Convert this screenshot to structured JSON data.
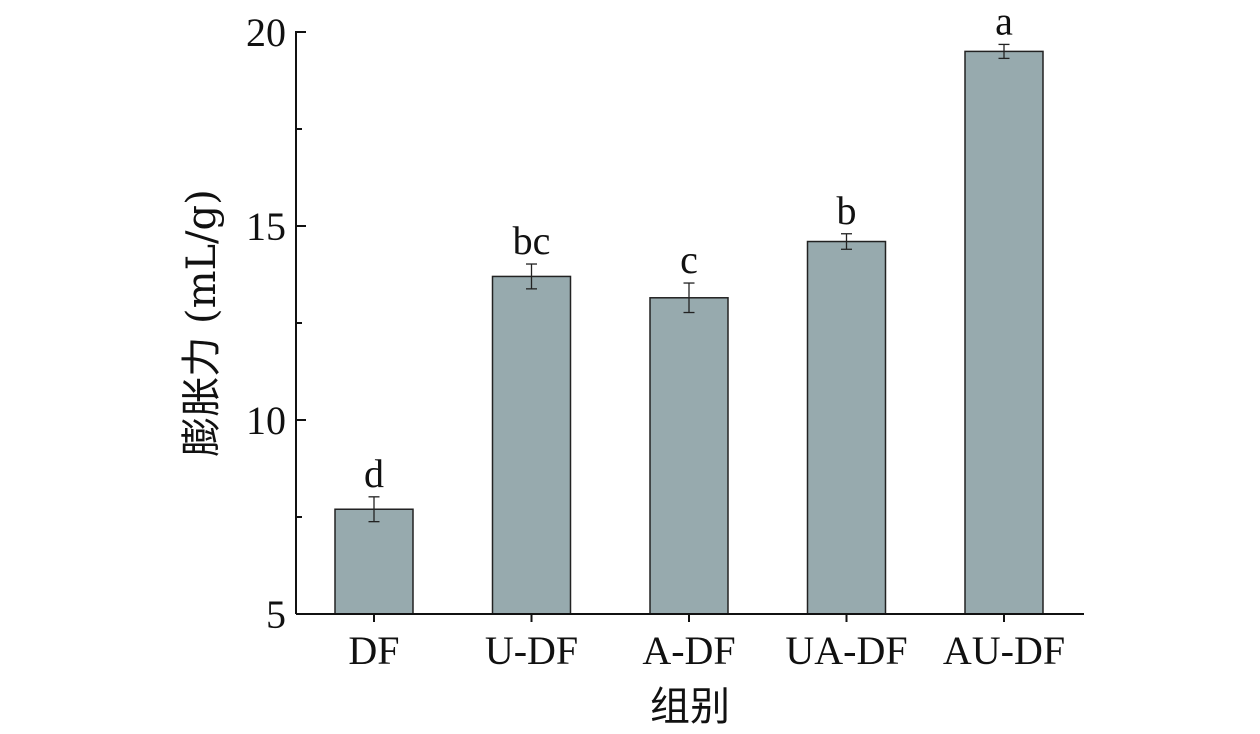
{
  "chart_data": {
    "type": "bar",
    "categories": [
      "DF",
      "U-DF",
      "A-DF",
      "UA-DF",
      "AU-DF"
    ],
    "values": [
      7.7,
      13.7,
      13.15,
      14.6,
      19.5
    ],
    "errors": [
      0.32,
      0.32,
      0.38,
      0.2,
      0.18
    ],
    "significance_labels": [
      "d",
      "bc",
      "c",
      "b",
      "a"
    ],
    "title": "",
    "xlabel": "组别",
    "ylabel": "膨胀力 (mL/g)",
    "ylim": [
      5,
      20
    ],
    "yticks": [
      5,
      10,
      15,
      20
    ],
    "grid": false,
    "legend": "none",
    "colors": {
      "bar_fill": "#97aaae",
      "bar_stroke": "#222222",
      "axis": "#111111"
    }
  }
}
